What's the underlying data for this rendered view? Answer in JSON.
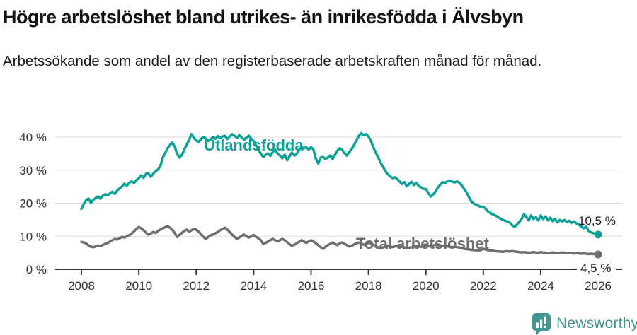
{
  "header": {
    "title": "Högre arbetslöshet bland utrikes- än inrikesfödda i Älvsbyn",
    "subtitle": "Arbetssökande som andel av den registerbaserade arbetskraften månad för månad."
  },
  "colors": {
    "accent_teal": "#0da298",
    "line_gray": "#6e6e6e",
    "axis": "#333333",
    "grid": "#dcdcdc",
    "logo_teal": "#42968f"
  },
  "chart_data": {
    "type": "line",
    "title": "Högre arbetslöshet bland utrikes- än inrikesfödda i Älvsbyn",
    "subtitle": "Arbetssökande som andel av den registerbaserade arbetskraften månad för månad.",
    "x_unit": "month",
    "x_start_year": 2008,
    "x_end_year": 2026,
    "x_ticks": [
      "2008",
      "2010",
      "2012",
      "2014",
      "2016",
      "2018",
      "2020",
      "2022",
      "2024",
      "2026"
    ],
    "y_ticks": [
      {
        "value": 0,
        "label": "0 %"
      },
      {
        "value": 10,
        "label": "10 %"
      },
      {
        "value": 20,
        "label": "20 %"
      },
      {
        "value": 30,
        "label": "30 %"
      },
      {
        "value": 40,
        "label": "40 %"
      }
    ],
    "ylim": [
      0,
      43
    ],
    "grid": "horizontal",
    "legend_position": "inline-labels",
    "series": [
      {
        "name": "Utlandsfödda",
        "color": "#0da298",
        "end_label": "10,5 %",
        "end_value": 10.5,
        "values": [
          18.3,
          19.8,
          20.9,
          21.4,
          20.1,
          21.0,
          21.6,
          22.0,
          21.4,
          22.3,
          22.7,
          22.4,
          23.0,
          23.5,
          22.8,
          23.9,
          24.5,
          25.1,
          25.9,
          25.3,
          26.2,
          26.6,
          26.1,
          27.0,
          27.6,
          28.4,
          27.7,
          28.9,
          29.1,
          28.0,
          28.9,
          29.7,
          30.2,
          31.2,
          33.8,
          35.1,
          36.6,
          37.6,
          38.3,
          37.2,
          34.9,
          33.8,
          34.6,
          36.2,
          37.7,
          39.1,
          40.9,
          39.8,
          39.0,
          38.5,
          39.4,
          40.1,
          39.6,
          38.8,
          39.3,
          40.0,
          39.5,
          40.3,
          39.7,
          40.2,
          40.4,
          39.4,
          40.2,
          40.9,
          40.4,
          39.8,
          40.6,
          39.9,
          39.2,
          39.8,
          40.4,
          39.5,
          38.8,
          37.5,
          36.2,
          35.0,
          34.0,
          34.6,
          35.1,
          34.3,
          35.5,
          36.2,
          35.0,
          34.4,
          33.6,
          34.7,
          33.0,
          34.2,
          35.3,
          34.4,
          34.9,
          36.2,
          37.0,
          36.6,
          37.0,
          36.2,
          37.0,
          36.2,
          33.5,
          32.0,
          33.8,
          34.0,
          33.4,
          33.8,
          34.4,
          33.4,
          34.6,
          35.9,
          36.6,
          36.2,
          35.1,
          34.4,
          35.5,
          36.4,
          37.6,
          39.1,
          40.4,
          41.2,
          40.6,
          40.9,
          40.2,
          38.9,
          36.9,
          35.4,
          33.9,
          32.4,
          31.1,
          29.8,
          28.8,
          28.2,
          27.6,
          27.9,
          27.3,
          26.6,
          25.8,
          26.4,
          25.1,
          25.8,
          26.5,
          25.5,
          26.1,
          25.2,
          24.8,
          24.3,
          24.3,
          23.1,
          22.0,
          22.6,
          23.5,
          24.7,
          25.6,
          26.4,
          26.1,
          26.6,
          26.8,
          26.5,
          26.3,
          26.6,
          26.2,
          25.4,
          24.3,
          23.3,
          21.8,
          20.5,
          19.9,
          19.5,
          19.2,
          18.9,
          18.9,
          18.3,
          17.5,
          17.0,
          16.6,
          16.3,
          15.9,
          15.4,
          15.0,
          14.7,
          14.5,
          14.2,
          13.4,
          12.8,
          13.5,
          14.3,
          15.2,
          16.7,
          15.8,
          14.8,
          16.3,
          15.2,
          15.8,
          14.8,
          16.3,
          15.2,
          16.0,
          14.8,
          15.6,
          14.5,
          15.2,
          14.2,
          14.9,
          14.5,
          14.9,
          14.3,
          14.7,
          14.1,
          14.5,
          13.8,
          13.5,
          12.9,
          12.4,
          12.9,
          11.6,
          11.2,
          10.9,
          10.7,
          10.5
        ]
      },
      {
        "name": "Total arbetslöshet",
        "color": "#6e6e6e",
        "end_label": "4,5 %",
        "end_value": 4.5,
        "values": [
          8.3,
          8.1,
          7.8,
          7.2,
          6.8,
          6.7,
          6.9,
          7.2,
          7.0,
          7.4,
          7.7,
          8.0,
          8.4,
          8.8,
          9.2,
          9.0,
          9.4,
          9.8,
          9.6,
          10.0,
          10.3,
          10.8,
          11.5,
          12.2,
          12.8,
          12.4,
          11.8,
          11.1,
          10.5,
          10.8,
          11.3,
          11.0,
          11.6,
          12.0,
          12.4,
          12.7,
          13.0,
          12.6,
          12.0,
          11.0,
          9.8,
          10.4,
          11.0,
          11.6,
          12.0,
          11.4,
          11.8,
          12.2,
          12.0,
          11.4,
          10.6,
          9.8,
          9.2,
          9.8,
          10.3,
          10.5,
          10.9,
          11.3,
          11.8,
          12.2,
          12.6,
          12.0,
          11.3,
          10.5,
          9.8,
          9.2,
          9.6,
          10.1,
          10.5,
          10.0,
          9.6,
          10.0,
          10.4,
          9.8,
          9.4,
          8.8,
          7.7,
          8.0,
          8.4,
          8.8,
          9.2,
          8.8,
          8.4,
          8.8,
          9.2,
          8.8,
          8.2,
          7.6,
          7.1,
          7.4,
          7.9,
          8.3,
          8.8,
          8.4,
          8.0,
          8.4,
          8.8,
          8.4,
          7.9,
          7.3,
          6.7,
          6.2,
          6.8,
          7.3,
          7.7,
          8.1,
          7.7,
          7.3,
          7.9,
          8.1,
          7.7,
          7.3,
          6.9,
          7.1,
          7.5,
          7.9,
          8.1,
          7.8,
          7.4,
          7.7,
          8.0,
          7.8,
          7.4,
          7.0,
          6.6,
          6.4,
          6.6,
          6.9,
          7.1,
          6.9,
          6.7,
          6.9,
          7.1,
          7.0,
          6.8,
          6.6,
          6.4,
          6.5,
          6.7,
          6.9,
          7.0,
          6.9,
          6.8,
          6.9,
          7.1,
          7.0,
          6.9,
          7.2,
          7.4,
          7.3,
          7.2,
          7.1,
          7.0,
          6.9,
          6.8,
          6.7,
          6.8,
          6.7,
          6.6,
          6.4,
          6.2,
          6.1,
          6.0,
          5.9,
          5.8,
          5.8,
          5.7,
          5.8,
          6.2,
          6.0,
          5.8,
          5.7,
          5.6,
          5.5,
          5.4,
          5.4,
          5.3,
          5.4,
          5.5,
          5.4,
          5.5,
          5.4,
          5.3,
          5.2,
          5.1,
          5.2,
          5.1,
          5.0,
          5.1,
          5.2,
          5.1,
          5.0,
          5.2,
          5.1,
          5.0,
          4.9,
          5.0,
          5.1,
          5.0,
          4.9,
          5.0,
          5.1,
          5.0,
          4.9,
          5.0,
          4.9,
          4.8,
          4.9,
          4.8,
          4.7,
          4.8,
          4.7,
          4.6,
          4.7,
          4.6,
          4.6,
          4.5
        ]
      }
    ]
  },
  "footer": {
    "brand": "Newsworthy",
    "logo_icon": "bar-chart-speech-bubble-icon"
  }
}
